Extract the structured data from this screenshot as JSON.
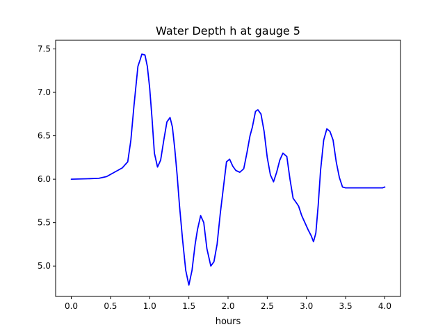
{
  "chart_data": {
    "type": "line",
    "title": "Water Depth h at gauge 5",
    "xlabel": "hours",
    "ylabel": "",
    "xlim": [
      -0.2,
      4.2
    ],
    "ylim": [
      4.65,
      7.6
    ],
    "xticks": [
      0.0,
      0.5,
      1.0,
      1.5,
      2.0,
      2.5,
      3.0,
      3.5,
      4.0
    ],
    "xtick_labels": [
      "0.0",
      "0.5",
      "1.0",
      "1.5",
      "2.0",
      "2.5",
      "3.0",
      "3.5",
      "4.0"
    ],
    "yticks": [
      5.0,
      5.5,
      6.0,
      6.5,
      7.0,
      7.5
    ],
    "ytick_labels": [
      "5.0",
      "5.5",
      "6.0",
      "6.5",
      "7.0",
      "7.5"
    ],
    "grid": false,
    "series": [
      {
        "color": "#0000ff",
        "x": [
          0.0,
          0.2,
          0.35,
          0.45,
          0.55,
          0.65,
          0.72,
          0.76,
          0.8,
          0.85,
          0.88,
          0.9,
          0.94,
          0.97,
          1.0,
          1.03,
          1.06,
          1.1,
          1.14,
          1.18,
          1.22,
          1.26,
          1.29,
          1.32,
          1.35,
          1.38,
          1.42,
          1.46,
          1.5,
          1.54,
          1.58,
          1.61,
          1.65,
          1.69,
          1.73,
          1.78,
          1.82,
          1.86,
          1.9,
          1.94,
          1.98,
          2.02,
          2.06,
          2.1,
          2.15,
          2.2,
          2.24,
          2.28,
          2.31,
          2.35,
          2.38,
          2.42,
          2.46,
          2.5,
          2.54,
          2.58,
          2.62,
          2.66,
          2.7,
          2.75,
          2.79,
          2.83,
          2.87,
          2.9,
          2.94,
          2.98,
          3.02,
          3.06,
          3.09,
          3.12,
          3.15,
          3.18,
          3.22,
          3.26,
          3.3,
          3.34,
          3.38,
          3.42,
          3.46,
          3.5,
          3.54,
          3.57,
          3.61,
          3.65,
          3.69,
          3.73,
          3.77,
          3.81,
          3.85,
          3.89,
          3.93,
          3.97,
          4.0
        ],
        "y": [
          6.0,
          6.005,
          6.01,
          6.03,
          6.08,
          6.13,
          6.2,
          6.45,
          6.85,
          7.3,
          7.38,
          7.44,
          7.43,
          7.3,
          7.05,
          6.7,
          6.3,
          6.14,
          6.22,
          6.45,
          6.66,
          6.71,
          6.6,
          6.35,
          6.05,
          5.7,
          5.3,
          4.95,
          4.78,
          4.95,
          5.25,
          5.42,
          5.58,
          5.5,
          5.2,
          5.0,
          5.05,
          5.25,
          5.6,
          5.9,
          6.2,
          6.23,
          6.15,
          6.1,
          6.08,
          6.12,
          6.3,
          6.5,
          6.6,
          6.78,
          6.8,
          6.75,
          6.55,
          6.25,
          6.05,
          5.97,
          6.08,
          6.22,
          6.3,
          6.26,
          6.0,
          5.78,
          5.73,
          5.69,
          5.58,
          5.5,
          5.42,
          5.35,
          5.28,
          5.38,
          5.7,
          6.1,
          6.45,
          6.58,
          6.55,
          6.45,
          6.2,
          6.02,
          5.91,
          5.9,
          5.9,
          5.9,
          5.9,
          5.9,
          5.9,
          5.9,
          5.9,
          5.9,
          5.9,
          5.9,
          5.9,
          5.9,
          5.91
        ]
      }
    ]
  }
}
